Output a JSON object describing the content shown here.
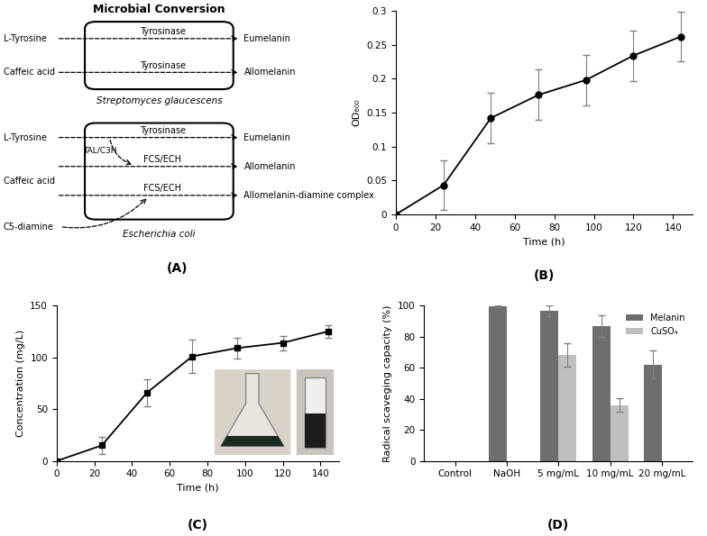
{
  "diagram": {
    "label": "(A)",
    "title": "Microbial Conversion",
    "organisms": [
      {
        "name": "Streptomyces glaucescens",
        "conversions": [
          {
            "substrate": "L-Tyrosine",
            "enzyme": "Tyrosinase",
            "product": "Eumelanin"
          },
          {
            "substrate": "Caffeic acid",
            "enzyme": "Tyrosinase",
            "product": "Allomelanin"
          }
        ]
      },
      {
        "name": "Escherichia coli",
        "conversions": [
          {
            "substrate": "L-Tyrosine",
            "enzyme": "Tyrosinase",
            "product": "Eumelanin"
          },
          {
            "substrate": "Caffeic acid",
            "enzyme": "FCS/ECH",
            "product": "Allomelanin"
          },
          {
            "substrate": "Caffeic acid",
            "enzyme": "FCS/ECH",
            "product": "Allomelanin-diamine complex"
          }
        ],
        "branch_enzyme": "TAL/C3H",
        "cosubstrate": "C5-diamine"
      }
    ]
  },
  "chart_data": [
    {
      "type": "line",
      "title": "(B)",
      "x_label": "Time (h)",
      "y_label": "OD₆₀₀",
      "x": [
        0,
        24,
        48,
        72,
        96,
        120,
        144
      ],
      "values": [
        0,
        0.043,
        0.142,
        0.176,
        0.198,
        0.234,
        0.262
      ],
      "errors": [
        0,
        0.037,
        0.037,
        0.037,
        0.037,
        0.037,
        0.037
      ],
      "color": "#000000",
      "marker": "circle",
      "xlim": [
        0,
        150
      ],
      "xticks": [
        0,
        20,
        40,
        60,
        80,
        100,
        120,
        140
      ],
      "ylim": [
        0,
        0.3
      ],
      "yticks": [
        0,
        0.05,
        0.1,
        0.15,
        0.2,
        0.25,
        0.3
      ]
    },
    {
      "type": "line",
      "title": "(C)",
      "x_label": "Time (h)",
      "y_label": "Concentration (mg/L)",
      "x": [
        0,
        24,
        48,
        72,
        96,
        120,
        144
      ],
      "values": [
        0,
        15,
        66,
        101,
        109,
        114,
        125
      ],
      "errors": [
        0,
        8,
        13,
        16,
        10,
        7,
        6
      ],
      "color": "#000000",
      "marker": "square",
      "xlim": [
        0,
        150
      ],
      "xticks": [
        0,
        20,
        40,
        60,
        80,
        100,
        120,
        140
      ],
      "ylim": [
        0,
        150
      ],
      "yticks": [
        0,
        50,
        100,
        150
      ]
    },
    {
      "type": "bar",
      "title": "(D)",
      "y_label": "Radical scaveging capacity (%)",
      "categories": [
        "Control",
        "NaOH",
        "5 mg/mL",
        "10 mg/mL",
        "20 mg/mL"
      ],
      "series": [
        {
          "name": "Melanin",
          "color": "#6e6e6e",
          "values": [
            null,
            99.5,
            96.5,
            87,
            62
          ],
          "errors": [
            null,
            0.5,
            3.5,
            7,
            9
          ]
        },
        {
          "name": "CuSO₄",
          "color": "#bfbfbf",
          "values": [
            null,
            null,
            68,
            36,
            null
          ],
          "errors": [
            null,
            null,
            7.5,
            4.5,
            null
          ]
        }
      ],
      "ylim": [
        0,
        100
      ],
      "yticks": [
        0,
        20,
        40,
        60,
        80,
        100
      ],
      "legend": "upper right"
    }
  ]
}
